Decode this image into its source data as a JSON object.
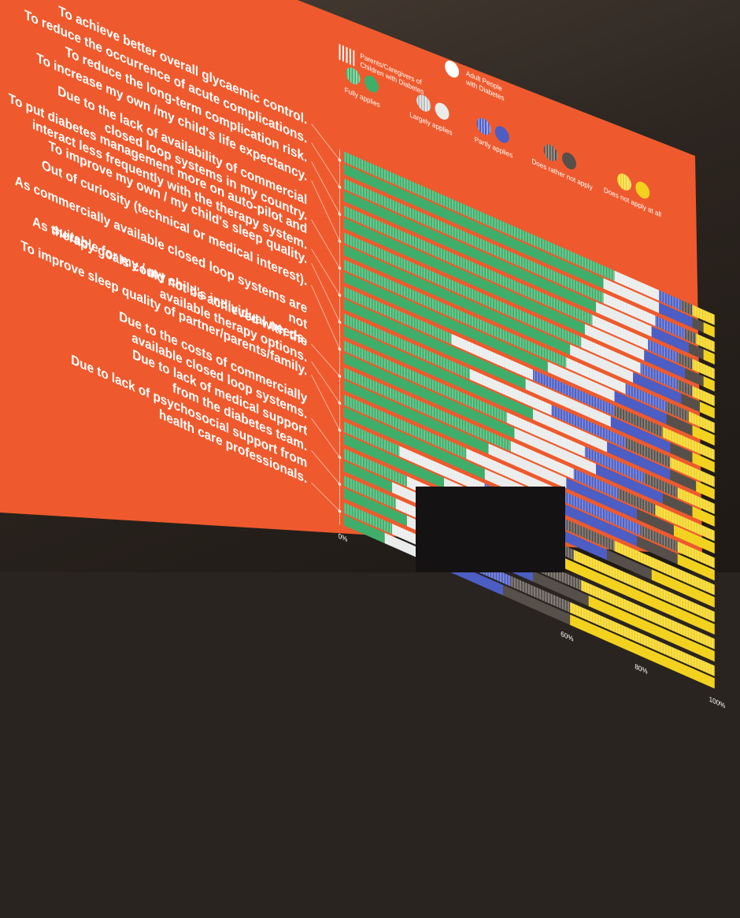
{
  "chart_data": {
    "type": "bar",
    "stacked": true,
    "orientation": "horizontal",
    "categories": [
      "To achieve better overall glycaemic control.",
      "To reduce the occurrence of acute complications.",
      "To reduce the long-term complication risk.",
      "To increase my own /my child's life expectancy.",
      "Due to the lack of availability of commercial closed loop systems in my country.",
      "To put diabetes management more on auto-pilot and interact less frequently with the therapy system.",
      "To improve my own / my child's sleep quality.",
      "Out of curiosity (technical or medical interest).",
      "As commercially available closed loop systems are not suitable for my / my child's individual needs.",
      "As therapy goals could not be achieved with the available therapy options.",
      "To improve sleep quality of partner/parents/family.",
      "Due to the costs of commercially available closed loop systems.",
      "Due to lack of medical support from the diabetes team.",
      "Due to lack of psychosocial support from health care professionals."
    ],
    "category_lines": [
      "To achieve better overall glycaemic control.",
      "To reduce the occurrence of acute complications.",
      "To reduce the long-term complication risk.",
      "To increase my own /my child's life expectancy.",
      "Due to the lack of availability of commercial\nclosed loop systems in my country.",
      "To put diabetes management more on auto-pilot and\ninteract less frequently with the therapy system.",
      "To improve my own  / my child's sleep quality.",
      "Out of curiosity (technical or medical interest).",
      "As commercially available closed loop systems are not\nsuitable for my / my child's individual needs.",
      "As therapy goals could not be achieved with the\navailable therapy options.",
      "To improve sleep quality of partner/parents/family.",
      "Due to the costs of commercially\navailable closed loop systems.",
      "Due to lack of medical support\nfrom the diabetes team.",
      "Due to lack of psychosocial support from\nhealth care professionals."
    ],
    "groups": [
      "Parents/Caregivers of Children with Diabetes",
      "Adult People with Diabetes"
    ],
    "legend": {
      "group_labels": [
        "Parents/Caregivers of\nChildren with Diabetes",
        "Adult People\nwith Diabetes"
      ],
      "response_labels": [
        "Fully applies",
        "Largely applies",
        "Partly applies",
        "Does rather not apply",
        "Does not apply at all"
      ]
    },
    "series": [
      {
        "name": "Fully applies",
        "color": "#3fae6a"
      },
      {
        "name": "Largely applies",
        "color": "#e9ecea"
      },
      {
        "name": "Partly applies",
        "color": "#4c5dc4"
      },
      {
        "name": "Does rather not apply",
        "color": "#574f49"
      },
      {
        "name": "Does not apply at all",
        "color": "#f2d21f"
      }
    ],
    "values": [
      {
        "parents": [
          73,
          12,
          6,
          3,
          6
        ],
        "adults": [
          70,
          15,
          9,
          3,
          3
        ]
      },
      {
        "parents": [
          70,
          14,
          8,
          3,
          5
        ],
        "adults": [
          68,
          15,
          10,
          4,
          3
        ]
      },
      {
        "parents": [
          67,
          15,
          8,
          4,
          6
        ],
        "adults": [
          65,
          16,
          11,
          5,
          3
        ]
      },
      {
        "parents": [
          64,
          16,
          10,
          4,
          6
        ],
        "adults": [
          61,
          17,
          13,
          5,
          4
        ]
      },
      {
        "parents": [
          60,
          16,
          11,
          6,
          7
        ],
        "adults": [
          55,
          18,
          14,
          7,
          6
        ]
      },
      {
        "parents": [
          29,
          22,
          22,
          13,
          14
        ],
        "adults": [
          49,
          23,
          16,
          6,
          6
        ]
      },
      {
        "parents": [
          34,
          22,
          20,
          12,
          12
        ],
        "adults": [
          51,
          20,
          17,
          7,
          5
        ]
      },
      {
        "parents": [
          44,
          21,
          16,
          9,
          10
        ],
        "adults": [
          46,
          22,
          18,
          8,
          6
        ]
      },
      {
        "parents": [
          45,
          17,
          12,
          10,
          16
        ],
        "adults": [
          39,
          21,
          19,
          10,
          11
        ]
      },
      {
        "parents": [
          33,
          24,
          23,
          10,
          10
        ],
        "adults": [
          38,
          21,
          20,
          11,
          10
        ]
      },
      {
        "parents": [
          15,
          23,
          22,
          13,
          27
        ],
        "adults": [
          27,
          21,
          23,
          12,
          17
        ]
      },
      {
        "parents": [
          17,
          17,
          16,
          12,
          38
        ],
        "adults": [
          13,
          13,
          16,
          14,
          44
        ]
      },
      {
        "parents": [
          14,
          12,
          21,
          17,
          36
        ],
        "adults": [
          17,
          15,
          19,
          15,
          34
        ]
      },
      {
        "parents": [
          13,
          14,
          18,
          16,
          39
        ],
        "adults": [
          11,
          12,
          20,
          18,
          39
        ]
      }
    ],
    "xaxis": {
      "ticks": [
        "0%",
        "60%",
        "80%",
        "100%"
      ],
      "tick_values": [
        0,
        60,
        80,
        100
      ],
      "xlim": [
        0,
        100
      ]
    }
  },
  "colors": {
    "screen": "#ec5427",
    "bar_gap": "#e1552b",
    "connector": "#f7c7b4"
  }
}
